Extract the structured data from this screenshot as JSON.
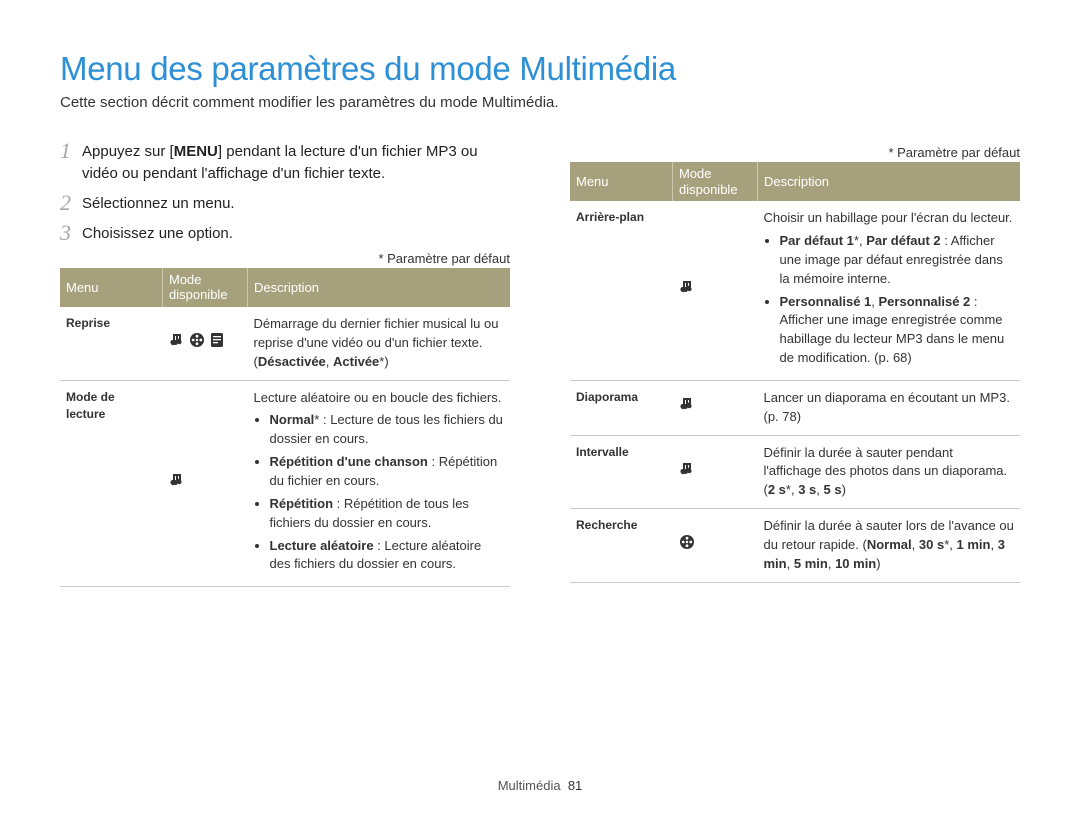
{
  "colors": {
    "title": "#2d8fd5",
    "step_num": "#a7a7a7",
    "th_bg": "#a6a07c",
    "th_text": "#ffffff",
    "th_border": "#cfcaae",
    "row_border": "#c8c8c8",
    "body_text": "#333333",
    "icon_fill": "#333333"
  },
  "header": {
    "title": "Menu des paramètres du mode Multimédia",
    "subtitle": "Cette section décrit comment modifier les paramètres du mode Multimédia."
  },
  "steps": [
    {
      "num": "1",
      "html": "Appuyez sur [<b>MENU</b>] pendant la lecture d'un fichier MP3 ou vidéo ou pendant l'affichage d'un fichier texte."
    },
    {
      "num": "2",
      "html": "Sélectionnez un menu."
    },
    {
      "num": "3",
      "html": "Choisissez une option."
    }
  ],
  "footnote": "* Paramètre par défaut",
  "table_headers": {
    "menu": "Menu",
    "mode": "Mode disponible",
    "desc": "Description"
  },
  "left_table": {
    "rows": [
      {
        "menu": "Reprise",
        "icons": [
          "music",
          "video",
          "text"
        ],
        "desc_html": "Démarrage du dernier fichier musical lu ou reprise d'une vidéo ou d'un fichier texte. (<b>Désactivée</b>, <b>Activée</b>*)"
      },
      {
        "menu": "Mode de lecture",
        "icons": [
          "music"
        ],
        "desc_html": "Lecture aléatoire ou en boucle des fichiers.<ul><li><b>Normal</b>* : Lecture de tous les fichiers du dossier en cours.</li><li><b>Répétition d'une chanson</b> : Répétition du fichier en cours.</li><li><b>Répétition</b> : Répétition de tous les fichiers du dossier en cours.</li><li><b>Lecture aléatoire</b> : Lecture aléatoire des fichiers du dossier en cours.</li></ul>"
      }
    ]
  },
  "right_table": {
    "rows": [
      {
        "menu": "Arrière-plan",
        "icons": [
          "music"
        ],
        "desc_html": "Choisir un habillage pour l'écran du lecteur.<ul><li><b>Par défaut 1</b>*, <b>Par défaut 2</b> : Afficher une image par défaut enregistrée dans la mémoire interne.</li><li><b>Personnalisé 1</b>, <b>Personnalisé 2</b> : Afficher une image enregistrée comme habillage du lecteur MP3 dans le menu de modification. (p. 68)</li></ul>"
      },
      {
        "menu": "Diaporama",
        "icons": [
          "music"
        ],
        "desc_html": "Lancer un diaporama en écoutant un MP3. (p. 78)"
      },
      {
        "menu": "Intervalle",
        "icons": [
          "music"
        ],
        "desc_html": "Définir la durée à sauter pendant l'affichage des photos dans un diaporama. (<b>2 s</b>*, <b>3 s</b>, <b>5 s</b>)"
      },
      {
        "menu": "Recherche",
        "icons": [
          "video"
        ],
        "desc_html": "Définir la durée à sauter lors de l'avance ou du retour rapide. (<b>Normal</b>, <b>30 s</b>*, <b>1 min</b>, <b>3 min</b>, <b>5 min</b>, <b>10 min</b>)"
      }
    ]
  },
  "footer": {
    "section": "Multimédia",
    "page": "81"
  },
  "icons_alt": {
    "music": "music-note-icon",
    "video": "film-reel-icon",
    "text": "text-page-icon"
  }
}
